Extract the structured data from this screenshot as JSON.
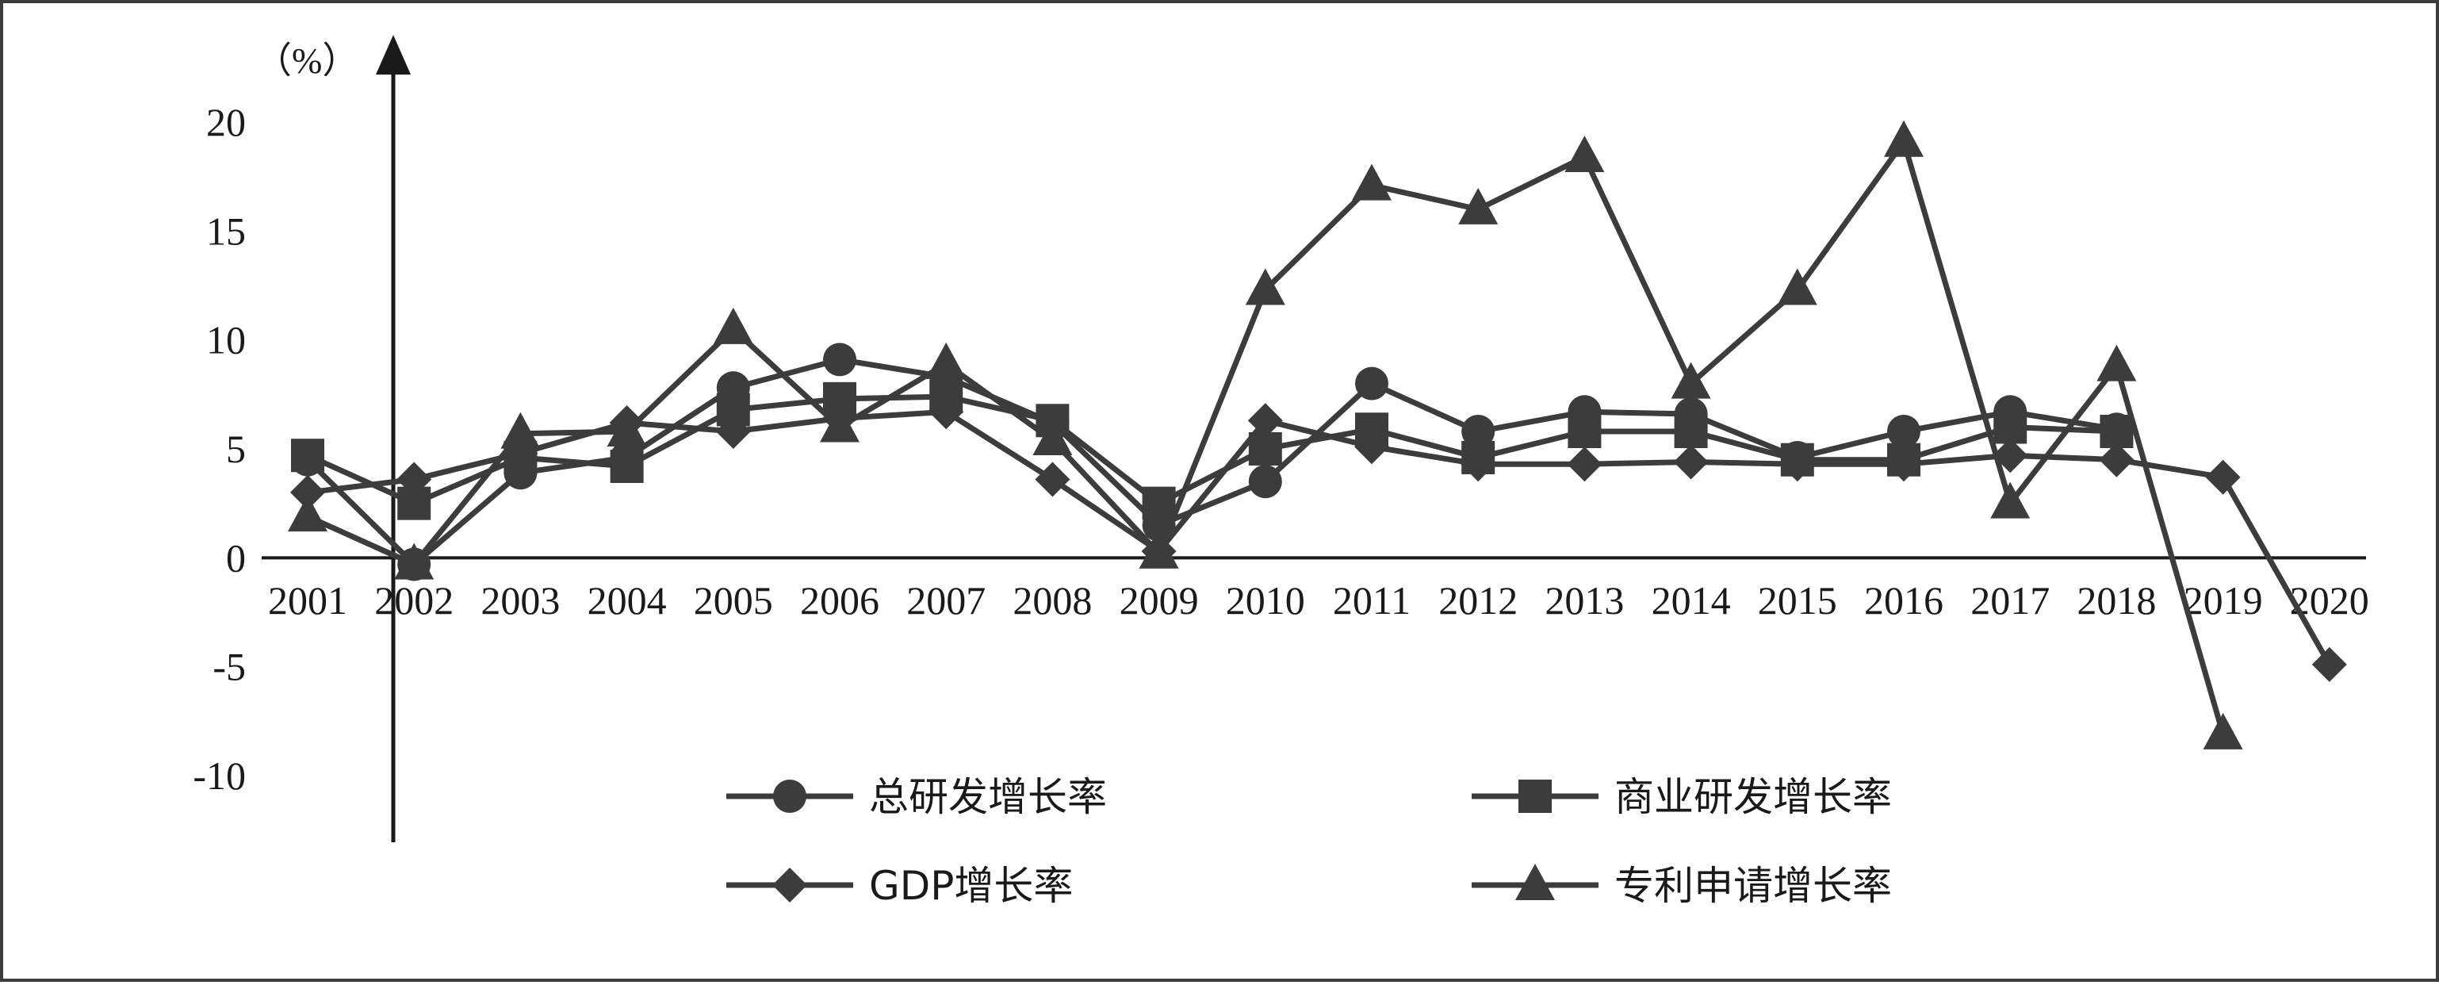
{
  "chart_data": {
    "type": "line",
    "y_unit": "（%）",
    "categories": [
      "2001",
      "2002",
      "2003",
      "2004",
      "2005",
      "2006",
      "2007",
      "2008",
      "2009",
      "2010",
      "2011",
      "2012",
      "2013",
      "2014",
      "2015",
      "2016",
      "2017",
      "2018",
      "2019",
      "2020"
    ],
    "ylim": [
      -10,
      20
    ],
    "yticks": [
      "20",
      "15",
      "10",
      "5",
      "0",
      "-5",
      "-10"
    ],
    "grid": false,
    "legend_position": "bottom-center",
    "line_color": "#3c3c3c",
    "series": [
      {
        "name": "总研发增长率",
        "marker": "circle",
        "values": [
          4.5,
          -0.3,
          3.9,
          4.6,
          7.8,
          9.1,
          8.3,
          6.2,
          1.5,
          3.5,
          8.0,
          5.8,
          6.7,
          6.6,
          4.6,
          5.8,
          6.7,
          5.9,
          null,
          null
        ]
      },
      {
        "name": "商业研发增长率",
        "marker": "square",
        "values": [
          4.7,
          2.5,
          4.6,
          4.2,
          6.8,
          7.3,
          7.4,
          6.3,
          2.5,
          5.0,
          5.9,
          4.6,
          5.8,
          5.8,
          4.5,
          4.5,
          6.0,
          5.8,
          null,
          null
        ]
      },
      {
        "name": "GDP增长率",
        "marker": "diamond",
        "values": [
          3.0,
          3.6,
          4.8,
          6.2,
          5.8,
          6.4,
          6.7,
          3.6,
          0.3,
          6.3,
          5.1,
          4.3,
          4.3,
          4.4,
          4.3,
          4.3,
          4.7,
          4.5,
          3.7,
          -4.9
        ]
      },
      {
        "name": "专利申请增长率",
        "marker": "triangle",
        "values": [
          1.9,
          -0.3,
          5.7,
          5.8,
          10.5,
          6.0,
          8.9,
          5.4,
          0.2,
          12.3,
          17.1,
          16.0,
          18.4,
          8.0,
          12.3,
          19.1,
          2.5,
          8.8,
          -8.1,
          null
        ]
      }
    ]
  }
}
